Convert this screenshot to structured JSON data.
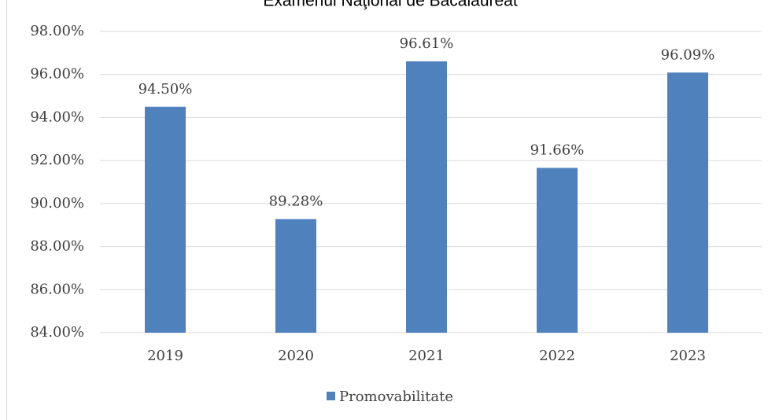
{
  "chart_data": {
    "type": "bar",
    "title": "Examenul Naţional de Bacalaureat",
    "categories": [
      "2019",
      "2020",
      "2021",
      "2022",
      "2023"
    ],
    "series": [
      {
        "name": "Promovabilitate",
        "color": "#4f81bd",
        "values": [
          94.5,
          89.28,
          96.61,
          91.66,
          96.09
        ],
        "value_labels": [
          "94.50%",
          "89.28%",
          "96.61%",
          "91.66%",
          "96.09%"
        ]
      }
    ],
    "ylim": [
      84,
      98
    ],
    "yticks": [
      {
        "value": 84,
        "label": "84.00%"
      },
      {
        "value": 86,
        "label": "86.00%"
      },
      {
        "value": 88,
        "label": "88.00%"
      },
      {
        "value": 90,
        "label": "90.00%"
      },
      {
        "value": 92,
        "label": "92.00%"
      },
      {
        "value": 94,
        "label": "94.00%"
      },
      {
        "value": 96,
        "label": "96.00%"
      },
      {
        "value": 98,
        "label": "98.00%"
      }
    ],
    "grid": true,
    "legend": "bottom"
  }
}
